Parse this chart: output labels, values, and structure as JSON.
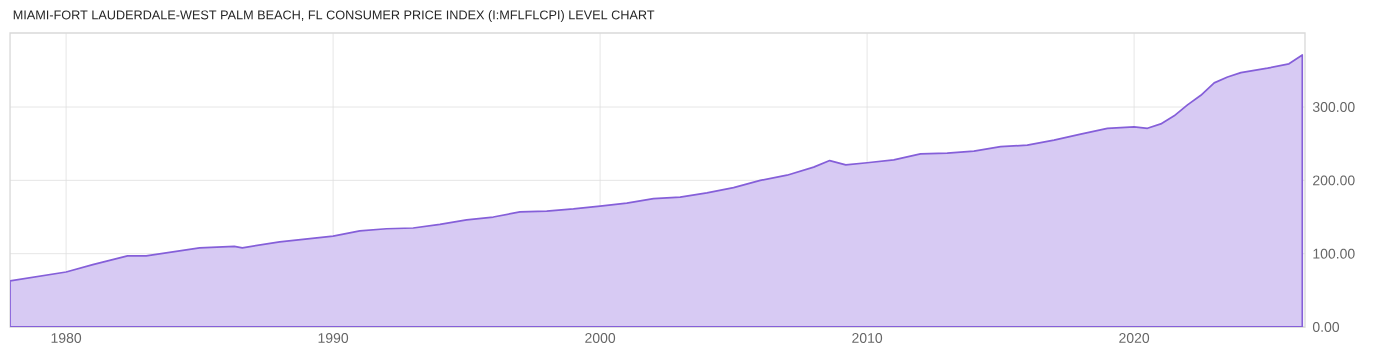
{
  "chart_data": {
    "type": "area",
    "title": "MIAMI-FORT LAUDERDALE-WEST PALM BEACH, FL CONSUMER PRICE INDEX (I:MFLFLCPI) LEVEL CHART",
    "x": [
      1977.9,
      1980,
      1981,
      1982.3,
      1983,
      1985,
      1986.3,
      1986.6,
      1988,
      1990,
      1991,
      1992,
      1993,
      1994,
      1995,
      1996,
      1997,
      1998,
      1999,
      2000,
      2001,
      2002,
      2003,
      2004,
      2005,
      2006,
      2007,
      2008,
      2008.6,
      2009.2,
      2010,
      2011,
      2012,
      2013,
      2014,
      2015,
      2016,
      2017,
      2018,
      2019,
      2020,
      2020.5,
      2021,
      2021.5,
      2022,
      2022.5,
      2023,
      2023.5,
      2024,
      2025,
      2025.8,
      2026.3
    ],
    "values": [
      63,
      75,
      85,
      97,
      97,
      108,
      110,
      108,
      116,
      124,
      131,
      134,
      135,
      140,
      146,
      150,
      157,
      158,
      161,
      165,
      169,
      175,
      177,
      183,
      190,
      200,
      207,
      218,
      227,
      221,
      224,
      228,
      236,
      237,
      240,
      246,
      248,
      255,
      263,
      271,
      273,
      271,
      277,
      288,
      303,
      316,
      333,
      341,
      347,
      353,
      359,
      371
    ],
    "color": "#d7caf3",
    "xlim": [
      1977.9,
      2026.4
    ],
    "ylim": [
      0,
      401
    ],
    "xticks": [
      1980,
      1990,
      2000,
      2010,
      2020
    ],
    "yticks": [
      {
        "value": 0,
        "label": "0.00"
      },
      {
        "value": 100,
        "label": "100.00"
      },
      {
        "value": 200,
        "label": "200.00"
      },
      {
        "value": 300,
        "label": "300.00"
      }
    ],
    "grid": true
  }
}
